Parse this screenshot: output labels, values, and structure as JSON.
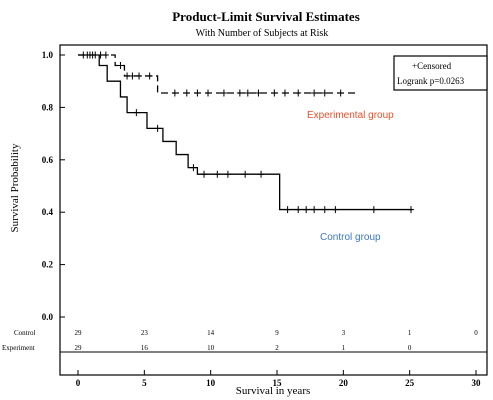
{
  "chart_data": {
    "type": "line",
    "title": "Product-Limit Survival Estimates",
    "subtitle": "With Number of Subjects at Risk",
    "xlabel": "Survival in years",
    "ylabel": "Survival Probability",
    "xlim": [
      0,
      30
    ],
    "ylim": [
      0,
      1.0
    ],
    "x_ticks": [
      "0",
      "5",
      "10",
      "15",
      "20",
      "25",
      "30"
    ],
    "x_tick_values": [
      0,
      5,
      10,
      15,
      20,
      25,
      30
    ],
    "y_ticks": [
      "0.0",
      "0.2",
      "0.4",
      "0.6",
      "0.8",
      "1.0"
    ],
    "y_tick_values": [
      0,
      0.2,
      0.4,
      0.6,
      0.8,
      1.0
    ],
    "legend": {
      "line1": "+Censored",
      "line2": "Logrank p=0.0263",
      "placement": "top-right"
    },
    "series": [
      {
        "name": "Experimental group",
        "style": "dashed",
        "color": "#e8502a",
        "steps": [
          [
            0,
            1.0
          ],
          [
            2.8,
            0.96
          ],
          [
            3.5,
            0.92
          ],
          [
            6.0,
            0.855
          ],
          [
            21.0,
            0.855
          ]
        ],
        "censored": [
          [
            0.4,
            1.0
          ],
          [
            0.9,
            1.0
          ],
          [
            1.3,
            1.0
          ],
          [
            1.7,
            1.0
          ],
          [
            2.1,
            1.0
          ],
          [
            3.2,
            0.96
          ],
          [
            3.7,
            0.92
          ],
          [
            4.1,
            0.92
          ],
          [
            4.6,
            0.92
          ],
          [
            5.4,
            0.92
          ],
          [
            7.3,
            0.855
          ],
          [
            8.2,
            0.855
          ],
          [
            9.0,
            0.855
          ],
          [
            9.8,
            0.855
          ],
          [
            11.0,
            0.855
          ],
          [
            12.2,
            0.855
          ],
          [
            12.8,
            0.855
          ],
          [
            13.6,
            0.855
          ],
          [
            14.8,
            0.855
          ],
          [
            15.6,
            0.855
          ],
          [
            16.6,
            0.855
          ],
          [
            17.8,
            0.855
          ],
          [
            18.6,
            0.855
          ],
          [
            19.8,
            0.855
          ]
        ]
      },
      {
        "name": "Control group",
        "style": "solid",
        "color": "#3a78c0",
        "steps": [
          [
            0,
            1.0
          ],
          [
            1.6,
            0.96
          ],
          [
            2.2,
            0.9
          ],
          [
            3.2,
            0.84
          ],
          [
            3.7,
            0.78
          ],
          [
            5.2,
            0.72
          ],
          [
            6.4,
            0.67
          ],
          [
            7.4,
            0.62
          ],
          [
            8.3,
            0.57
          ],
          [
            9.0,
            0.545
          ],
          [
            15.2,
            0.41
          ],
          [
            25.2,
            0.41
          ]
        ],
        "censored": [
          [
            0.7,
            1.0
          ],
          [
            1.1,
            1.0
          ],
          [
            4.4,
            0.78
          ],
          [
            6.0,
            0.72
          ],
          [
            8.7,
            0.57
          ],
          [
            9.5,
            0.545
          ],
          [
            10.5,
            0.545
          ],
          [
            11.3,
            0.545
          ],
          [
            12.6,
            0.545
          ],
          [
            13.8,
            0.545
          ],
          [
            15.8,
            0.41
          ],
          [
            16.6,
            0.41
          ],
          [
            17.2,
            0.41
          ],
          [
            17.8,
            0.41
          ],
          [
            18.6,
            0.41
          ],
          [
            19.4,
            0.41
          ],
          [
            22.3,
            0.41
          ],
          [
            25.1,
            0.41
          ]
        ]
      }
    ],
    "annotations": [
      {
        "text": "Experimental group",
        "color": "#e8502a"
      },
      {
        "text": "Control group",
        "color": "#3a78c0"
      }
    ],
    "risk_table": {
      "x_values": [
        0,
        5,
        10,
        15,
        20,
        25,
        30
      ],
      "rows": [
        {
          "label": "Control",
          "counts": [
            "29",
            "23",
            "14",
            "9",
            "3",
            "1",
            "0"
          ]
        },
        {
          "label": "Experiment",
          "counts": [
            "29",
            "16",
            "10",
            "2",
            "1",
            "0",
            ""
          ]
        }
      ]
    }
  }
}
